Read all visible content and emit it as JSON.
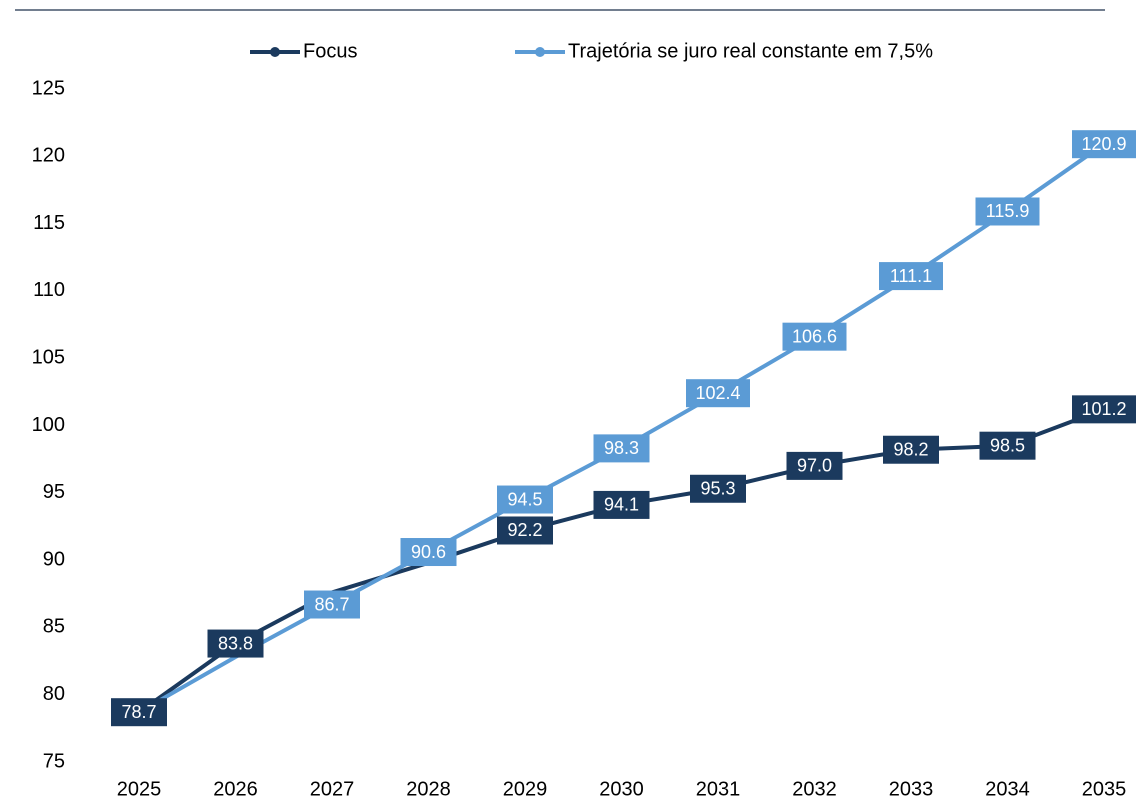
{
  "chart_data": {
    "type": "line",
    "categories": [
      "2025",
      "2026",
      "2027",
      "2028",
      "2029",
      "2030",
      "2031",
      "2032",
      "2033",
      "2034",
      "2035"
    ],
    "series": [
      {
        "name": "Focus",
        "color": "#1b3a5e",
        "values": [
          78.7,
          83.8,
          87.6,
          89.8,
          92.2,
          94.1,
          95.3,
          97.0,
          98.2,
          98.5,
          101.2
        ],
        "value_labels": [
          "78.7",
          "83.8",
          null,
          null,
          "92.2",
          "94.1",
          "95.3",
          "97.0",
          "98.2",
          "98.5",
          "101.2"
        ]
      },
      {
        "name": "Trajetória se juro real constante em 7,5%",
        "color": "#5b9bd5",
        "values": [
          78.7,
          82.8,
          86.7,
          90.6,
          94.5,
          98.3,
          102.4,
          106.6,
          111.1,
          115.9,
          120.9
        ],
        "value_labels": [
          null,
          null,
          "86.7",
          "90.6",
          "94.5",
          "98.3",
          "102.4",
          "106.6",
          "111.1",
          "115.9",
          "120.9"
        ]
      }
    ],
    "ylim": [
      75,
      125
    ],
    "yticks": [
      75,
      80,
      85,
      90,
      95,
      100,
      105,
      110,
      115,
      120,
      125
    ]
  }
}
